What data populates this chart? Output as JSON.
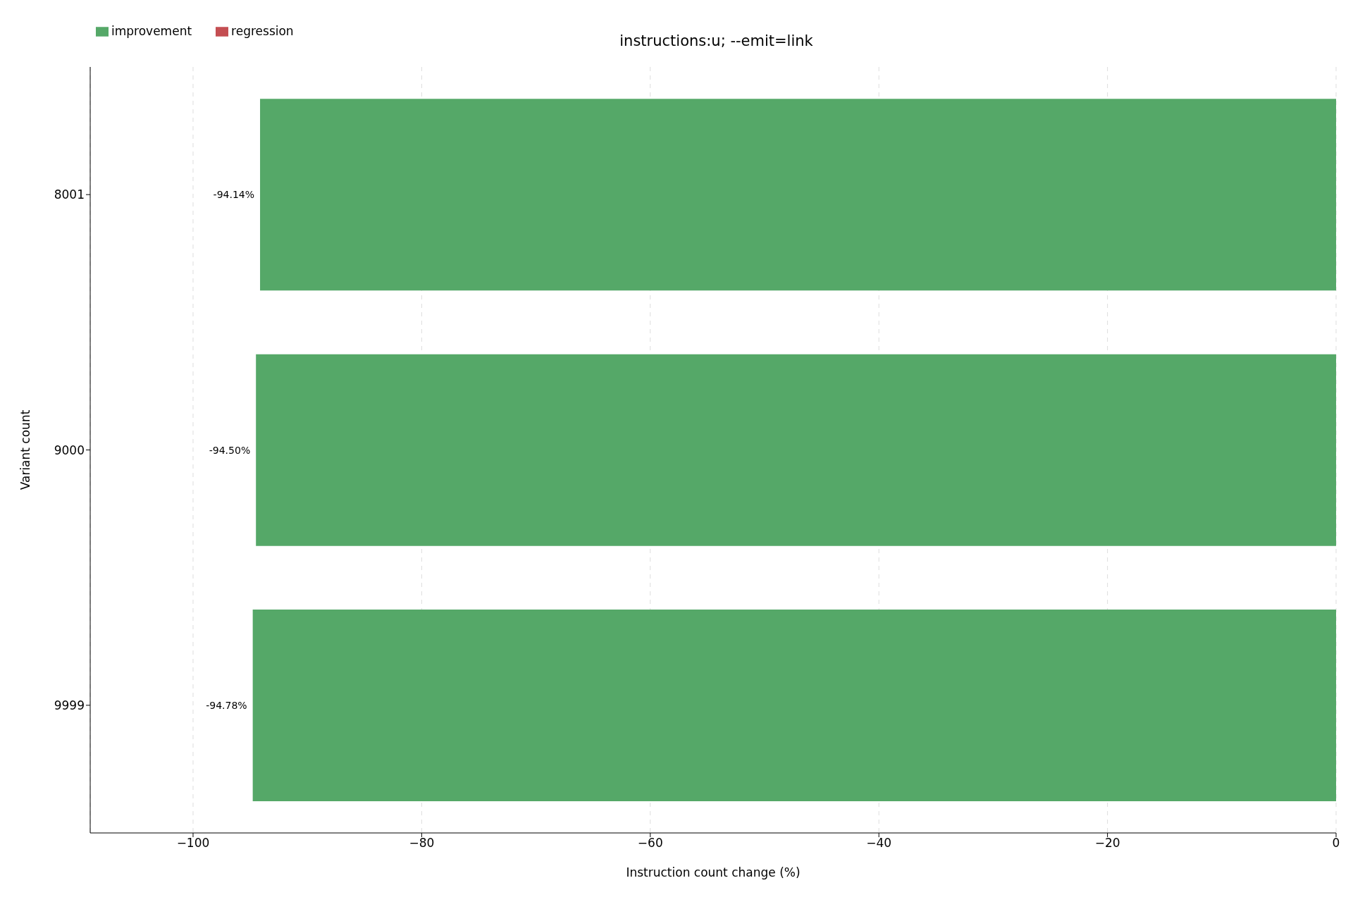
{
  "chart_data": {
    "type": "bar",
    "orientation": "horizontal",
    "title": "instructions:u; --emit=link",
    "xlabel": "Instruction count change (%)",
    "ylabel": "Variant count",
    "categories": [
      "8001",
      "9000",
      "9999"
    ],
    "series": [
      {
        "name": "regression",
        "color": "#c44e52",
        "values": [
          null,
          null,
          null
        ]
      },
      {
        "name": "improvement",
        "color": "#55a868",
        "values": [
          -94.14,
          -94.5,
          -94.78
        ],
        "value_labels": [
          "-94.14%",
          "-94.50%",
          "-94.78%"
        ]
      }
    ],
    "xlim": [
      -109,
      0
    ],
    "xticks": [
      {
        "value": -100,
        "label": "−100"
      },
      {
        "value": -80,
        "label": "−80"
      },
      {
        "value": -60,
        "label": "−60"
      },
      {
        "value": -40,
        "label": "−40"
      },
      {
        "value": -20,
        "label": "−20"
      },
      0
    ],
    "grid": "x",
    "legend": "top left"
  }
}
